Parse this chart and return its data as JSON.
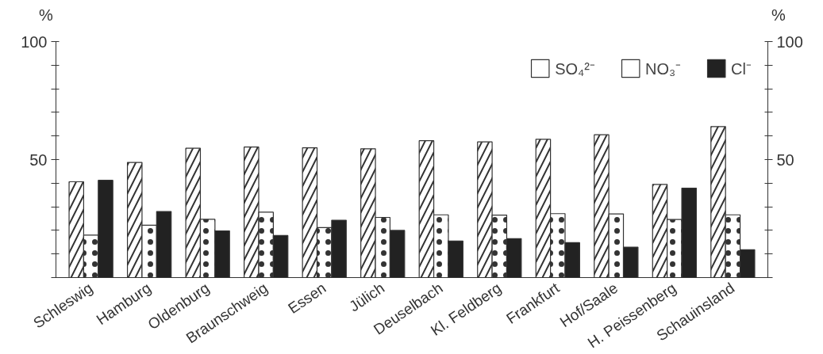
{
  "chart_data": {
    "type": "bar",
    "categories": [
      "Schleswig",
      "Hamburg",
      "Oldenburg",
      "Braunschweig",
      "Essen",
      "Jülich",
      "Deuselbach",
      "Kl. Feldberg",
      "Frankfurt",
      "Hof/Saale",
      "H. Peissenberg",
      "Schauinsland"
    ],
    "series": [
      {
        "name": "SO₄²⁻",
        "color": "#ffffff",
        "values": [
          40.6,
          48.8,
          54.8,
          55.3,
          55,
          54.6,
          58,
          57.5,
          58.6,
          60.5,
          39.5,
          64
        ]
      },
      {
        "name": "NO₃⁻",
        "color": "#ffffff",
        "values": [
          18,
          22.2,
          24.7,
          27.7,
          21.2,
          25.5,
          26.6,
          26.5,
          27.1,
          27,
          24.6,
          26.6
        ]
      },
      {
        "name": "Cl⁻",
        "color": "#222222",
        "values": [
          41.2,
          28,
          19.8,
          17.8,
          24.3,
          20,
          15.5,
          16.5,
          14.8,
          12.9,
          37.9,
          11.8
        ]
      }
    ],
    "ylabel": "%",
    "y2label": "%",
    "ylim": [
      0,
      100
    ],
    "yticks": [
      {
        "value": 0,
        "label": null
      },
      {
        "value": 10,
        "label": null
      },
      {
        "value": 20,
        "label": null
      },
      {
        "value": 30,
        "label": null
      },
      {
        "value": 40,
        "label": null
      },
      50,
      {
        "value": 60,
        "label": null
      },
      {
        "value": 70,
        "label": null
      },
      {
        "value": 80,
        "label": null
      },
      {
        "value": 90,
        "label": null
      },
      100
    ],
    "y2lim": [
      0,
      100
    ],
    "y2ticks": [
      {
        "value": 0,
        "label": null
      },
      {
        "value": 10,
        "label": null
      },
      {
        "value": 20,
        "label": null
      },
      {
        "value": 30,
        "label": null
      },
      {
        "value": 40,
        "label": null
      },
      50,
      {
        "value": 60,
        "label": null
      },
      {
        "value": 70,
        "label": null
      },
      {
        "value": 80,
        "label": null
      },
      {
        "value": 90,
        "label": null
      },
      100
    ],
    "legend": "top right",
    "grid": false
  }
}
